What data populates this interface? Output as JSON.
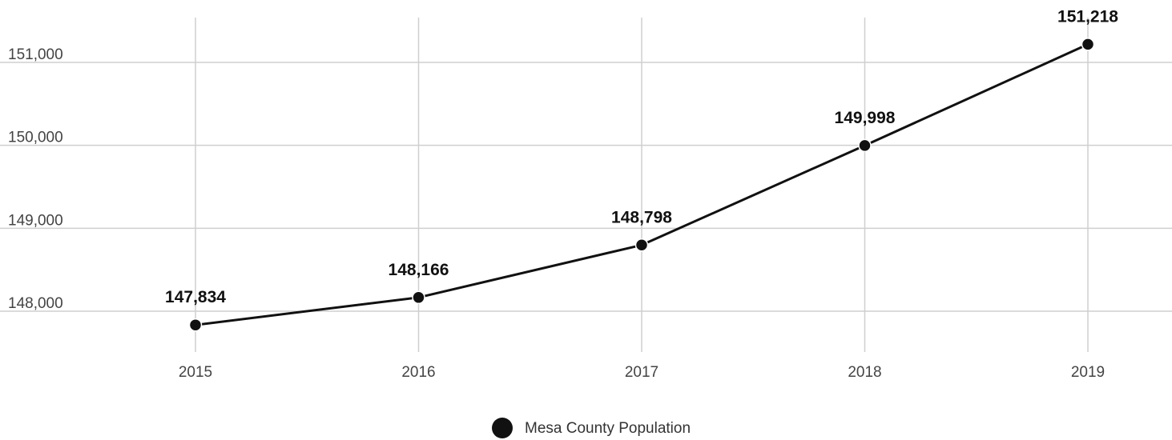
{
  "chart_data": {
    "type": "line",
    "title": "",
    "xlabel": "",
    "ylabel": "",
    "x": [
      "2015",
      "2016",
      "2017",
      "2018",
      "2019"
    ],
    "series": [
      {
        "name": "Mesa County Population",
        "values": [
          147834,
          148166,
          148798,
          149998,
          151218
        ],
        "data_labels": [
          "147,834",
          "148,166",
          "148,798",
          "149,998",
          "151,218"
        ]
      }
    ],
    "yticks": [
      148000,
      149000,
      150000,
      151000
    ],
    "ytick_labels": [
      "148,000",
      "149,000",
      "150,000",
      "151,000"
    ],
    "ylim": [
      147400,
      151500
    ],
    "grid": true,
    "legend_position": "bottom-center",
    "line_color": "#111111",
    "grid_color": "#cfcfcf"
  }
}
